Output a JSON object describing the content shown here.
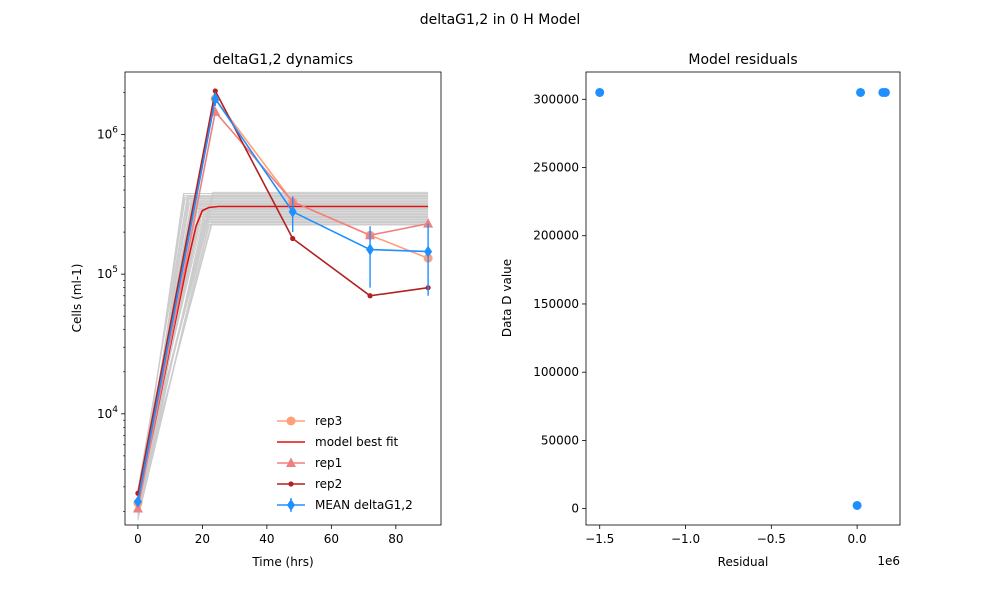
{
  "figure": {
    "suptitle": "deltaG1,2 in 0 H Model"
  },
  "chart_data": [
    {
      "type": "line",
      "title": "deltaG1,2 dynamics",
      "xlabel": "Time (hrs)",
      "ylabel": "Cells (ml-1)",
      "yscale": "log",
      "xlim": [
        -4,
        94
      ],
      "ylim": [
        1600,
        2800000
      ],
      "x_ticks": [
        0,
        20,
        40,
        60,
        80
      ],
      "y_ticks": [
        {
          "value": 10000,
          "base": "10",
          "exp": "4"
        },
        {
          "value": 100000,
          "base": "10",
          "exp": "5"
        },
        {
          "value": 1000000,
          "base": "10",
          "exp": "6"
        }
      ],
      "ensemble": {
        "color": "#cccccc",
        "count": 40,
        "start": 2300,
        "plateau_low": 225000,
        "plateau_high": 390000,
        "rise_end_low": 14,
        "rise_end_high": 24
      },
      "series": [
        {
          "name": "rep3",
          "color": "#ffa07a",
          "marker": "circle",
          "x": [
            0,
            24,
            48,
            72,
            90
          ],
          "y": [
            2300,
            1800000,
            330000,
            190000,
            130000
          ]
        },
        {
          "name": " model best fit",
          "color": "#dd1111",
          "marker": "none",
          "x": [
            0,
            5,
            10,
            15,
            18,
            20,
            22,
            25,
            90
          ],
          "y": [
            2300,
            8000,
            30000,
            110000,
            220000,
            285000,
            300000,
            305000,
            305000
          ]
        },
        {
          "name": "rep1",
          "color": "#f08080",
          "marker": "triangle",
          "x": [
            0,
            24,
            48,
            72,
            90
          ],
          "y": [
            2100,
            1450000,
            330000,
            190000,
            230000
          ]
        },
        {
          "name": "rep2",
          "color": "#b22222",
          "marker": "dot",
          "x": [
            0,
            24,
            48,
            72,
            90
          ],
          "y": [
            2700,
            2050000,
            180000,
            70000,
            80000
          ]
        },
        {
          "name": "MEAN deltaG1,2",
          "color": "#1e90ff",
          "marker": "diamond",
          "errorbars": true,
          "x": [
            0,
            24,
            48,
            72,
            90
          ],
          "y": [
            2350,
            1800000,
            280000,
            150000,
            145000
          ],
          "yerr_low": [
            2200,
            1600000,
            200000,
            80000,
            70000
          ],
          "yerr_high": [
            2500,
            2000000,
            360000,
            220000,
            230000
          ]
        }
      ],
      "legend": {
        "position": "lower right",
        "frame": false
      }
    },
    {
      "type": "scatter",
      "title": "Model residuals",
      "xlabel": "Residual",
      "ylabel": "Data D value",
      "offset_label": "1e6",
      "xlim": [
        -1.58,
        0.25
      ],
      "ylim": [
        -12000,
        320000
      ],
      "x_ticks": [
        "−1.5",
        "−1.0",
        "−0.5",
        "0.0"
      ],
      "x_tick_values": [
        -1.5,
        -1.0,
        -0.5,
        0.0
      ],
      "y_ticks": [
        0,
        50000,
        100000,
        150000,
        200000,
        250000,
        300000
      ],
      "color": "#1e90ff",
      "points": [
        {
          "x": -1.5,
          "y": 305000
        },
        {
          "x": 0.02,
          "y": 305000
        },
        {
          "x": 0.15,
          "y": 305000
        },
        {
          "x": 0.165,
          "y": 305000
        },
        {
          "x": 0.0,
          "y": 2300
        }
      ]
    }
  ]
}
